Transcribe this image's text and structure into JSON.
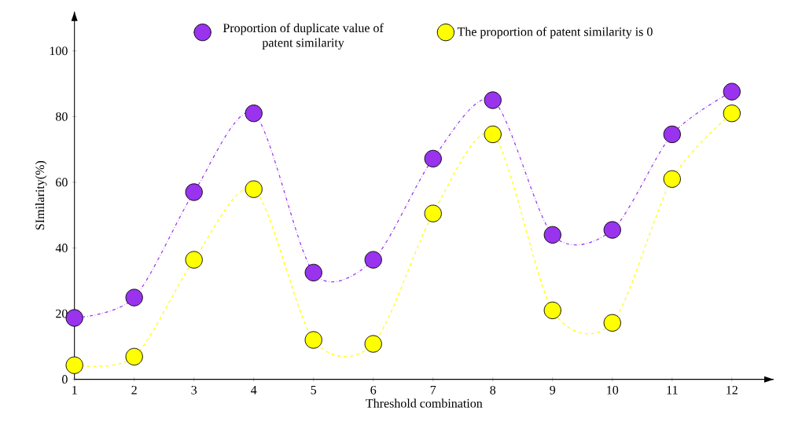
{
  "chart_data": {
    "type": "line",
    "xlabel": "Threshold combination",
    "ylabel": "SImilarity(%)",
    "x": [
      1,
      2,
      3,
      4,
      5,
      6,
      7,
      8,
      9,
      10,
      11,
      12
    ],
    "series": [
      {
        "name": "Proportion of duplicate value of patent similarity",
        "color": "#9933ee",
        "line_style": "dashdot",
        "values": [
          18.7,
          24.9,
          57,
          81,
          32.5,
          36.4,
          67.2,
          85,
          44,
          45.5,
          74.6,
          87.6
        ]
      },
      {
        "name": "The proportion of patent similarity is 0",
        "color": "#ffff00",
        "line_style": "dashed",
        "values": [
          4.3,
          6.9,
          36.4,
          57.9,
          12,
          10.8,
          50.5,
          74.6,
          21,
          17.2,
          61,
          81
        ]
      }
    ],
    "xlim": [
      1,
      12.7
    ],
    "ylim": [
      0,
      112
    ],
    "xticks": [
      1,
      2,
      3,
      4,
      5,
      6,
      7,
      8,
      9,
      10,
      11,
      12
    ],
    "yticks": [
      0,
      20,
      40,
      60,
      80,
      100
    ],
    "marker": "circle",
    "legend": "top",
    "grid": false
  }
}
